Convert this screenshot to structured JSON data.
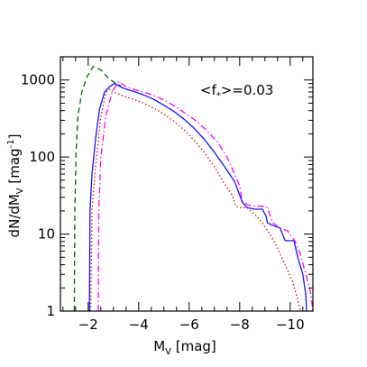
{
  "chart_data": {
    "type": "line",
    "title": "",
    "xlabel": {
      "main": "M",
      "sub": "V",
      "tail": " [mag]"
    },
    "ylabel": {
      "main": "dN/dM",
      "sub": "V",
      "tail": " [mag",
      "sup": "-1",
      "end": "]"
    },
    "annotation": {
      "prefix": "<f",
      "sub": "*",
      "suffix": ">=0.03"
    },
    "x_axis": {
      "reversed": true,
      "xlim": [
        -0.9,
        -10.9
      ]
    },
    "y_axis": {
      "scale": "log",
      "ylim": [
        1,
        2000
      ]
    },
    "x_ticks": [
      {
        "value": -2,
        "label": "−2"
      },
      {
        "value": -4,
        "label": "−4"
      },
      {
        "value": -6,
        "label": "−6"
      },
      {
        "value": -8,
        "label": "−8"
      },
      {
        "value": -10,
        "label": "−10"
      }
    ],
    "y_ticks": [
      {
        "value": 1,
        "label": "1"
      },
      {
        "value": 10,
        "label": "10"
      },
      {
        "value": 100,
        "label": "100"
      },
      {
        "value": 1000,
        "label": "1000"
      }
    ],
    "grid": false,
    "legend": "none",
    "series": [
      {
        "color": "#006400",
        "dash": "6,4",
        "points": [
          [
            -1.45,
            1
          ],
          [
            -1.47,
            20
          ],
          [
            -1.52,
            120
          ],
          [
            -1.6,
            350
          ],
          [
            -1.75,
            700
          ],
          [
            -1.95,
            1100
          ],
          [
            -2.2,
            1500
          ],
          [
            -2.5,
            1350
          ],
          [
            -2.8,
            1050
          ],
          [
            -3.1,
            900
          ],
          [
            -3.3,
            830
          ]
        ]
      },
      {
        "color": "#1414ff",
        "dash": "",
        "points": [
          [
            -2.05,
            1
          ],
          [
            -2.07,
            20
          ],
          [
            -2.15,
            60
          ],
          [
            -2.3,
            180
          ],
          [
            -2.45,
            420
          ],
          [
            -2.65,
            700
          ],
          [
            -2.85,
            820
          ],
          [
            -3.05,
            900
          ],
          [
            -3.4,
            780
          ],
          [
            -3.8,
            710
          ],
          [
            -4.2,
            640
          ],
          [
            -4.6,
            560
          ],
          [
            -5.0,
            470
          ],
          [
            -5.4,
            390
          ],
          [
            -5.8,
            310
          ],
          [
            -6.2,
            235
          ],
          [
            -6.6,
            170
          ],
          [
            -7.0,
            115
          ],
          [
            -7.4,
            75
          ],
          [
            -7.8,
            48
          ],
          [
            -8.0,
            32
          ],
          [
            -8.1,
            26
          ],
          [
            -8.3,
            22
          ],
          [
            -8.6,
            21
          ],
          [
            -8.9,
            21
          ],
          [
            -9.05,
            17
          ],
          [
            -9.1,
            14
          ],
          [
            -9.3,
            13
          ],
          [
            -9.6,
            12
          ],
          [
            -9.8,
            8.2
          ],
          [
            -10.15,
            8.2
          ],
          [
            -10.3,
            5
          ],
          [
            -10.5,
            3
          ],
          [
            -10.62,
            1.6
          ],
          [
            -10.65,
            1
          ]
        ]
      },
      {
        "color": "#cc1010",
        "dash": "1.5,2.5",
        "points": [
          [
            -2.1,
            1
          ],
          [
            -2.15,
            20
          ],
          [
            -2.3,
            80
          ],
          [
            -2.5,
            330
          ],
          [
            -2.7,
            690
          ],
          [
            -2.85,
            760
          ],
          [
            -3.0,
            700
          ],
          [
            -3.4,
            620
          ],
          [
            -3.8,
            560
          ],
          [
            -4.2,
            500
          ],
          [
            -4.6,
            430
          ],
          [
            -5.0,
            360
          ],
          [
            -5.4,
            290
          ],
          [
            -5.8,
            225
          ],
          [
            -6.2,
            165
          ],
          [
            -6.6,
            115
          ],
          [
            -7.0,
            75
          ],
          [
            -7.4,
            45
          ],
          [
            -7.7,
            32
          ],
          [
            -7.85,
            23
          ],
          [
            -8.0,
            22
          ],
          [
            -8.3,
            22
          ],
          [
            -8.6,
            18
          ],
          [
            -8.9,
            14
          ],
          [
            -9.2,
            10
          ],
          [
            -9.5,
            6.5
          ],
          [
            -9.8,
            4.0
          ],
          [
            -10.1,
            2.4
          ],
          [
            -10.3,
            1.4
          ],
          [
            -10.4,
            1
          ]
        ]
      },
      {
        "color": "#ff00ff",
        "dash": "7,3,1.5,3",
        "points": [
          [
            -2.4,
            1
          ],
          [
            -2.42,
            20
          ],
          [
            -2.5,
            100
          ],
          [
            -2.7,
            340
          ],
          [
            -2.95,
            700
          ],
          [
            -3.2,
            950
          ],
          [
            -3.5,
            820
          ],
          [
            -3.9,
            740
          ],
          [
            -4.3,
            680
          ],
          [
            -4.7,
            610
          ],
          [
            -5.1,
            530
          ],
          [
            -5.5,
            440
          ],
          [
            -5.9,
            360
          ],
          [
            -6.3,
            290
          ],
          [
            -6.7,
            220
          ],
          [
            -7.1,
            160
          ],
          [
            -7.5,
            100
          ],
          [
            -7.8,
            60
          ],
          [
            -8.0,
            42
          ],
          [
            -8.1,
            27
          ],
          [
            -8.3,
            24
          ],
          [
            -8.6,
            23
          ],
          [
            -8.9,
            23
          ],
          [
            -9.1,
            22
          ],
          [
            -9.3,
            14
          ],
          [
            -9.6,
            12
          ],
          [
            -9.9,
            11
          ],
          [
            -10.2,
            8
          ],
          [
            -10.4,
            5.5
          ],
          [
            -10.6,
            3.2
          ],
          [
            -10.8,
            1.8
          ],
          [
            -10.9,
            1
          ]
        ]
      }
    ]
  }
}
